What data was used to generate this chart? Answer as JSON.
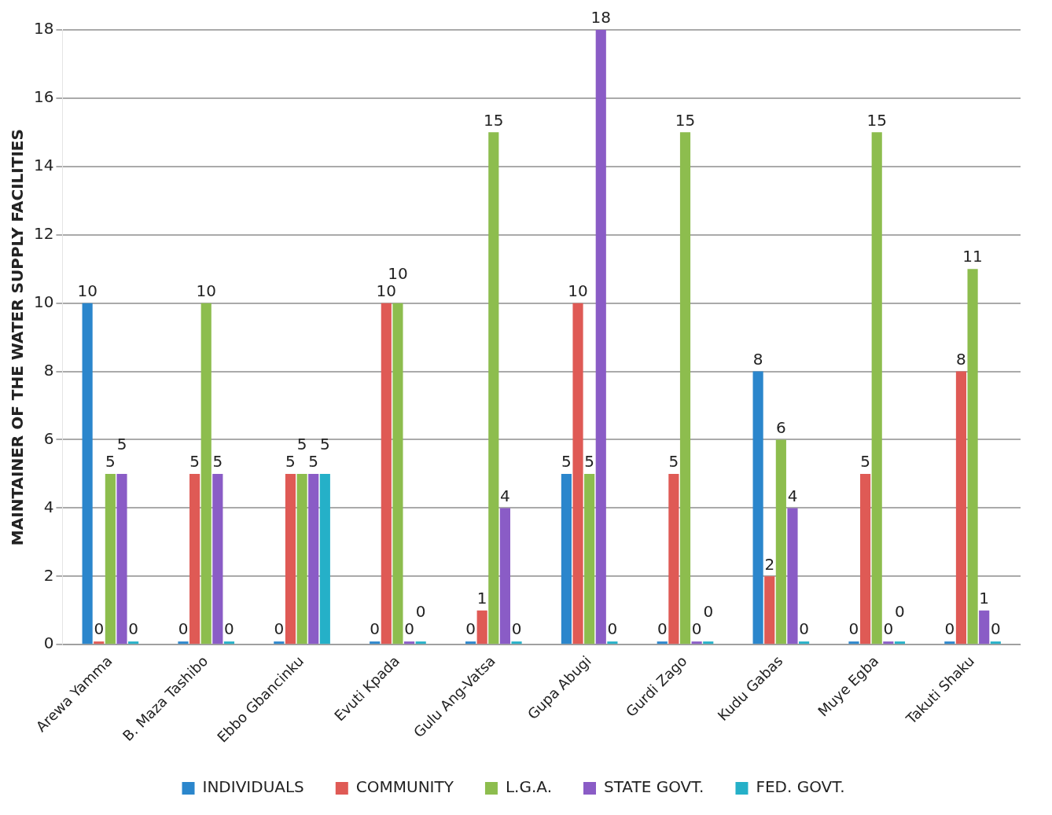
{
  "chart_data": {
    "type": "bar",
    "ylabel": "MAINTAINER OF THE WATER SUPPLY FACILITIES",
    "categories": [
      "Arewa Yamma",
      "B. Maza Tashibo",
      "Ebbo Gbancinku",
      "Evuti Kpada",
      "Gulu Ang-Vatsa",
      "Gupa Abugi",
      "Gurdi Zago",
      "Kudu Gabas",
      "Muye Egba",
      "Takuti Shaku"
    ],
    "series": [
      {
        "name": "INDIVIDUALS",
        "color": "#2b86cc",
        "values": [
          10,
          0,
          0,
          0,
          0,
          5,
          0,
          8,
          0,
          0
        ]
      },
      {
        "name": "COMMUNITY",
        "color": "#df5a55",
        "values": [
          0,
          5,
          5,
          10,
          1,
          10,
          5,
          2,
          5,
          8
        ]
      },
      {
        "name": "L.G.A.",
        "color": "#8dbd4e",
        "values": [
          5,
          10,
          5,
          10,
          15,
          5,
          15,
          6,
          15,
          11
        ]
      },
      {
        "name": "STATE GOVT.",
        "color": "#8a5cc6",
        "values": [
          5,
          5,
          5,
          0,
          4,
          18,
          0,
          4,
          0,
          1
        ]
      },
      {
        "name": "FED. GOVT.",
        "color": "#25b0c8",
        "values": [
          0,
          0,
          5,
          0,
          0,
          0,
          0,
          0,
          0,
          0
        ]
      }
    ],
    "ylim": [
      0,
      18
    ],
    "yticks": [
      0,
      2,
      4,
      6,
      8,
      10,
      12,
      14,
      16,
      18
    ],
    "grid": "y",
    "legend": "bottom",
    "data_labels": true
  }
}
